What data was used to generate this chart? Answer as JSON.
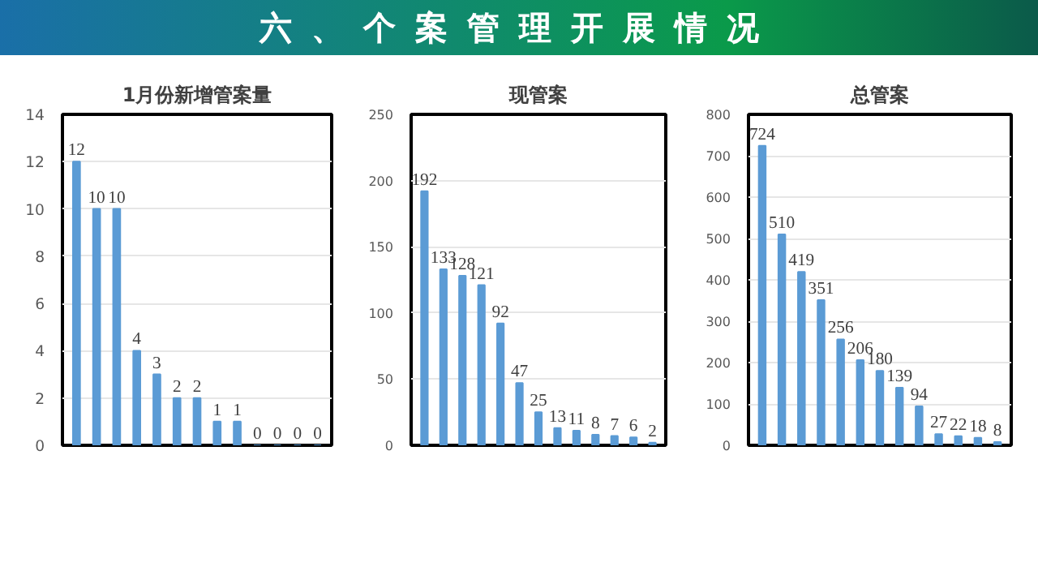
{
  "chart_data": [
    {
      "type": "bar",
      "title": "1月份新增管案量",
      "annotations": [
        "六、个案管理开展情况"
      ],
      "categories": [
        null,
        null,
        null,
        null,
        null,
        null,
        null,
        null,
        null,
        null,
        null,
        null,
        null
      ],
      "values": [
        12,
        10,
        10,
        4,
        3,
        2,
        2,
        1,
        1,
        0,
        0,
        0,
        0
      ],
      "color": "#5b9bd5",
      "ylim": [
        0,
        14
      ],
      "yticks": [
        0,
        2,
        4,
        6,
        8,
        10,
        12,
        14
      ],
      "grid": "y",
      "data_labels": true,
      "tick_labels": "y"
    },
    {
      "type": "bar",
      "title": "现管案",
      "categories": [
        null,
        null,
        null,
        null,
        null,
        null,
        null,
        null,
        null,
        null,
        null,
        null,
        null
      ],
      "values": [
        192,
        133,
        128,
        121,
        92,
        47,
        25,
        13,
        11,
        8,
        7,
        6,
        2
      ],
      "color": "#5b9bd5",
      "ylim": [
        0,
        250
      ],
      "yticks": [
        0,
        50,
        100,
        150,
        200,
        250
      ],
      "grid": "y",
      "data_labels": true,
      "tick_labels": "y"
    },
    {
      "type": "bar",
      "title": "总管案",
      "categories": [
        null,
        null,
        null,
        null,
        null,
        null,
        null,
        null,
        null,
        null,
        null,
        null,
        null
      ],
      "values": [
        724,
        510,
        419,
        351,
        256,
        206,
        180,
        139,
        94,
        27,
        22,
        18,
        8
      ],
      "color": "#5b9bd5",
      "ylim": [
        0,
        800
      ],
      "yticks": [
        0,
        100,
        200,
        300,
        400,
        500,
        600,
        700,
        800
      ],
      "grid": "y",
      "data_labels": true,
      "tick_labels": "y"
    }
  ]
}
